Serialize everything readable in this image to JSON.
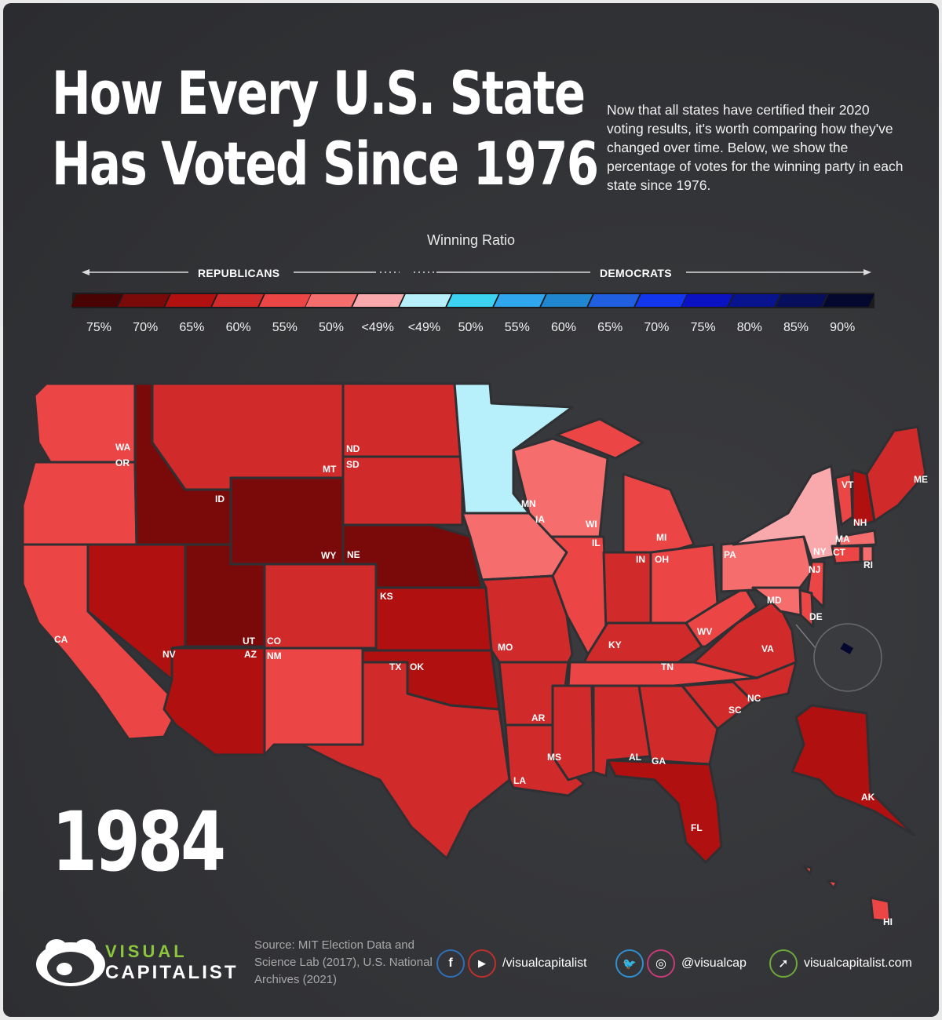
{
  "title_line1": "How Every U.S. State",
  "title_line2": "Has Voted Since 1976",
  "intro": "Now that all states have certified their 2020 voting results, it's worth comparing how they've changed over time. Below, we show the percentage of votes for the winning party in each state since 1976.",
  "legend": {
    "title": "Winning Ratio",
    "republicans_label": "REPUBLICANS",
    "democrats_label": "DEMOCRATS",
    "bins": [
      {
        "label": "75%",
        "color": "#4a0303"
      },
      {
        "label": "70%",
        "color": "#7a0a0a"
      },
      {
        "label": "65%",
        "color": "#b01010"
      },
      {
        "label": "60%",
        "color": "#d02a2a"
      },
      {
        "label": "55%",
        "color": "#ec4545"
      },
      {
        "label": "50%",
        "color": "#f56d6d"
      },
      {
        "label": "<49%",
        "color": "#f9a8ac"
      },
      {
        "label": "<49%",
        "color": "#b7f0fb"
      },
      {
        "label": "50%",
        "color": "#3cd3f2"
      },
      {
        "label": "55%",
        "color": "#2fa6ee"
      },
      {
        "label": "60%",
        "color": "#1f86cf"
      },
      {
        "label": "65%",
        "color": "#1f5fe0"
      },
      {
        "label": "70%",
        "color": "#1236ee"
      },
      {
        "label": "75%",
        "color": "#0a12c4"
      },
      {
        "label": "80%",
        "color": "#07148e"
      },
      {
        "label": "85%",
        "color": "#070f5c"
      },
      {
        "label": "90%",
        "color": "#05082e"
      }
    ]
  },
  "year": "1984",
  "states": [
    {
      "abbr": "WA",
      "winner": "Republican",
      "fill": "#ec4545"
    },
    {
      "abbr": "OR",
      "winner": "Republican",
      "fill": "#ec4545"
    },
    {
      "abbr": "CA",
      "winner": "Republican",
      "fill": "#ec4545"
    },
    {
      "abbr": "ID",
      "winner": "Republican",
      "fill": "#7a0a0a"
    },
    {
      "abbr": "NV",
      "winner": "Republican",
      "fill": "#b01010"
    },
    {
      "abbr": "UT",
      "winner": "Republican",
      "fill": "#7a0a0a"
    },
    {
      "abbr": "AZ",
      "winner": "Republican",
      "fill": "#b01010"
    },
    {
      "abbr": "MT",
      "winner": "Republican",
      "fill": "#d02a2a"
    },
    {
      "abbr": "WY",
      "winner": "Republican",
      "fill": "#7a0a0a"
    },
    {
      "abbr": "CO",
      "winner": "Republican",
      "fill": "#d02a2a"
    },
    {
      "abbr": "NM",
      "winner": "Republican",
      "fill": "#ec4545"
    },
    {
      "abbr": "ND",
      "winner": "Republican",
      "fill": "#d02a2a"
    },
    {
      "abbr": "SD",
      "winner": "Republican",
      "fill": "#d02a2a"
    },
    {
      "abbr": "NE",
      "winner": "Republican",
      "fill": "#7a0a0a"
    },
    {
      "abbr": "KS",
      "winner": "Republican",
      "fill": "#b01010"
    },
    {
      "abbr": "OK",
      "winner": "Republican",
      "fill": "#b01010"
    },
    {
      "abbr": "TX",
      "winner": "Republican",
      "fill": "#d02a2a"
    },
    {
      "abbr": "MN",
      "winner": "Democratic",
      "fill": "#b7f0fb"
    },
    {
      "abbr": "IA",
      "winner": "Republican",
      "fill": "#f56d6d"
    },
    {
      "abbr": "MO",
      "winner": "Republican",
      "fill": "#d02a2a"
    },
    {
      "abbr": "AR",
      "winner": "Republican",
      "fill": "#d02a2a"
    },
    {
      "abbr": "LA",
      "winner": "Republican",
      "fill": "#d02a2a"
    },
    {
      "abbr": "WI",
      "winner": "Republican",
      "fill": "#f56d6d"
    },
    {
      "abbr": "IL",
      "winner": "Republican",
      "fill": "#ec4545"
    },
    {
      "abbr": "MI",
      "winner": "Republican",
      "fill": "#ec4545"
    },
    {
      "abbr": "IN",
      "winner": "Republican",
      "fill": "#d02a2a"
    },
    {
      "abbr": "OH",
      "winner": "Republican",
      "fill": "#ec4545"
    },
    {
      "abbr": "KY",
      "winner": "Republican",
      "fill": "#d02a2a"
    },
    {
      "abbr": "TN",
      "winner": "Republican",
      "fill": "#ec4545"
    },
    {
      "abbr": "MS",
      "winner": "Republican",
      "fill": "#d02a2a"
    },
    {
      "abbr": "AL",
      "winner": "Republican",
      "fill": "#d02a2a"
    },
    {
      "abbr": "GA",
      "winner": "Republican",
      "fill": "#d02a2a"
    },
    {
      "abbr": "FL",
      "winner": "Republican",
      "fill": "#b01010"
    },
    {
      "abbr": "SC",
      "winner": "Republican",
      "fill": "#d02a2a"
    },
    {
      "abbr": "NC",
      "winner": "Republican",
      "fill": "#d02a2a"
    },
    {
      "abbr": "VA",
      "winner": "Republican",
      "fill": "#d02a2a"
    },
    {
      "abbr": "WV",
      "winner": "Republican",
      "fill": "#ec4545"
    },
    {
      "abbr": "PA",
      "winner": "Republican",
      "fill": "#f56d6d"
    },
    {
      "abbr": "NY",
      "winner": "Republican",
      "fill": "#f9a8ac"
    },
    {
      "abbr": "VT",
      "winner": "Republican",
      "fill": "#ec4545"
    },
    {
      "abbr": "NH",
      "winner": "Republican",
      "fill": "#b01010"
    },
    {
      "abbr": "ME",
      "winner": "Republican",
      "fill": "#d02a2a"
    },
    {
      "abbr": "MA",
      "winner": "Republican",
      "fill": "#f56d6d"
    },
    {
      "abbr": "RI",
      "winner": "Republican",
      "fill": "#f56d6d"
    },
    {
      "abbr": "CT",
      "winner": "Republican",
      "fill": "#ec4545"
    },
    {
      "abbr": "NJ",
      "winner": "Republican",
      "fill": "#ec4545"
    },
    {
      "abbr": "DE",
      "winner": "Republican",
      "fill": "#ec4545"
    },
    {
      "abbr": "MD",
      "winner": "Republican",
      "fill": "#f56d6d"
    },
    {
      "abbr": "AK",
      "winner": "Republican",
      "fill": "#b01010"
    },
    {
      "abbr": "HI",
      "winner": "Republican",
      "fill": "#ec4545"
    },
    {
      "abbr": "D.C.",
      "winner": "Democratic",
      "fill": "#05082e"
    }
  ],
  "brand": {
    "top": "VISUAL",
    "bottom": "CAPITALIST"
  },
  "source": "Source: MIT Election Data and Science Lab (2017), U.S. National Archives (2021)",
  "social": {
    "fb_handle": "/visualcapitalist",
    "tw_handle": "@visualcap",
    "web_handle": "visualcapitalist.com",
    "fb_icon": "f",
    "yt_icon": "▶",
    "tw_icon": "🐦",
    "ig_icon": "◎",
    "cursor_icon": "➚"
  }
}
